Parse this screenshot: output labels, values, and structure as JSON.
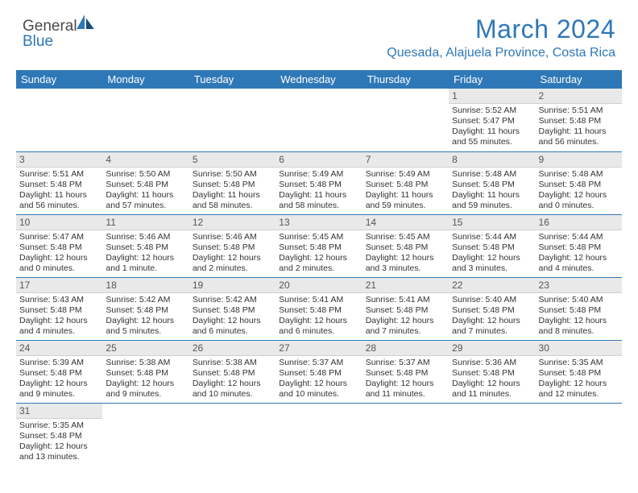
{
  "logo": {
    "text1": "Genera",
    "text2": "Blue",
    "l_letter": "l"
  },
  "title": "March 2024",
  "location": "Quesada, Alajuela Province, Costa Rica",
  "dayNames": [
    "Sunday",
    "Monday",
    "Tuesday",
    "Wednesday",
    "Thursday",
    "Friday",
    "Saturday"
  ],
  "colors": {
    "headerBg": "#2f78b7",
    "daynumBg": "#e9e9e9",
    "borderBlue": "#2f78b7"
  },
  "weeks": [
    [
      null,
      null,
      null,
      null,
      null,
      {
        "n": "1",
        "sunrise": "5:52 AM",
        "sunset": "5:47 PM",
        "daylight": "11 hours and 55 minutes."
      },
      {
        "n": "2",
        "sunrise": "5:51 AM",
        "sunset": "5:48 PM",
        "daylight": "11 hours and 56 minutes."
      }
    ],
    [
      {
        "n": "3",
        "sunrise": "5:51 AM",
        "sunset": "5:48 PM",
        "daylight": "11 hours and 56 minutes."
      },
      {
        "n": "4",
        "sunrise": "5:50 AM",
        "sunset": "5:48 PM",
        "daylight": "11 hours and 57 minutes."
      },
      {
        "n": "5",
        "sunrise": "5:50 AM",
        "sunset": "5:48 PM",
        "daylight": "11 hours and 58 minutes."
      },
      {
        "n": "6",
        "sunrise": "5:49 AM",
        "sunset": "5:48 PM",
        "daylight": "11 hours and 58 minutes."
      },
      {
        "n": "7",
        "sunrise": "5:49 AM",
        "sunset": "5:48 PM",
        "daylight": "11 hours and 59 minutes."
      },
      {
        "n": "8",
        "sunrise": "5:48 AM",
        "sunset": "5:48 PM",
        "daylight": "11 hours and 59 minutes."
      },
      {
        "n": "9",
        "sunrise": "5:48 AM",
        "sunset": "5:48 PM",
        "daylight": "12 hours and 0 minutes."
      }
    ],
    [
      {
        "n": "10",
        "sunrise": "5:47 AM",
        "sunset": "5:48 PM",
        "daylight": "12 hours and 0 minutes."
      },
      {
        "n": "11",
        "sunrise": "5:46 AM",
        "sunset": "5:48 PM",
        "daylight": "12 hours and 1 minute."
      },
      {
        "n": "12",
        "sunrise": "5:46 AM",
        "sunset": "5:48 PM",
        "daylight": "12 hours and 2 minutes."
      },
      {
        "n": "13",
        "sunrise": "5:45 AM",
        "sunset": "5:48 PM",
        "daylight": "12 hours and 2 minutes."
      },
      {
        "n": "14",
        "sunrise": "5:45 AM",
        "sunset": "5:48 PM",
        "daylight": "12 hours and 3 minutes."
      },
      {
        "n": "15",
        "sunrise": "5:44 AM",
        "sunset": "5:48 PM",
        "daylight": "12 hours and 3 minutes."
      },
      {
        "n": "16",
        "sunrise": "5:44 AM",
        "sunset": "5:48 PM",
        "daylight": "12 hours and 4 minutes."
      }
    ],
    [
      {
        "n": "17",
        "sunrise": "5:43 AM",
        "sunset": "5:48 PM",
        "daylight": "12 hours and 4 minutes."
      },
      {
        "n": "18",
        "sunrise": "5:42 AM",
        "sunset": "5:48 PM",
        "daylight": "12 hours and 5 minutes."
      },
      {
        "n": "19",
        "sunrise": "5:42 AM",
        "sunset": "5:48 PM",
        "daylight": "12 hours and 6 minutes."
      },
      {
        "n": "20",
        "sunrise": "5:41 AM",
        "sunset": "5:48 PM",
        "daylight": "12 hours and 6 minutes."
      },
      {
        "n": "21",
        "sunrise": "5:41 AM",
        "sunset": "5:48 PM",
        "daylight": "12 hours and 7 minutes."
      },
      {
        "n": "22",
        "sunrise": "5:40 AM",
        "sunset": "5:48 PM",
        "daylight": "12 hours and 7 minutes."
      },
      {
        "n": "23",
        "sunrise": "5:40 AM",
        "sunset": "5:48 PM",
        "daylight": "12 hours and 8 minutes."
      }
    ],
    [
      {
        "n": "24",
        "sunrise": "5:39 AM",
        "sunset": "5:48 PM",
        "daylight": "12 hours and 9 minutes."
      },
      {
        "n": "25",
        "sunrise": "5:38 AM",
        "sunset": "5:48 PM",
        "daylight": "12 hours and 9 minutes."
      },
      {
        "n": "26",
        "sunrise": "5:38 AM",
        "sunset": "5:48 PM",
        "daylight": "12 hours and 10 minutes."
      },
      {
        "n": "27",
        "sunrise": "5:37 AM",
        "sunset": "5:48 PM",
        "daylight": "12 hours and 10 minutes."
      },
      {
        "n": "28",
        "sunrise": "5:37 AM",
        "sunset": "5:48 PM",
        "daylight": "12 hours and 11 minutes."
      },
      {
        "n": "29",
        "sunrise": "5:36 AM",
        "sunset": "5:48 PM",
        "daylight": "12 hours and 11 minutes."
      },
      {
        "n": "30",
        "sunrise": "5:35 AM",
        "sunset": "5:48 PM",
        "daylight": "12 hours and 12 minutes."
      }
    ],
    [
      {
        "n": "31",
        "sunrise": "5:35 AM",
        "sunset": "5:48 PM",
        "daylight": "12 hours and 13 minutes."
      },
      null,
      null,
      null,
      null,
      null,
      null
    ]
  ],
  "labels": {
    "sunrise": "Sunrise:",
    "sunset": "Sunset:",
    "daylight": "Daylight:"
  }
}
